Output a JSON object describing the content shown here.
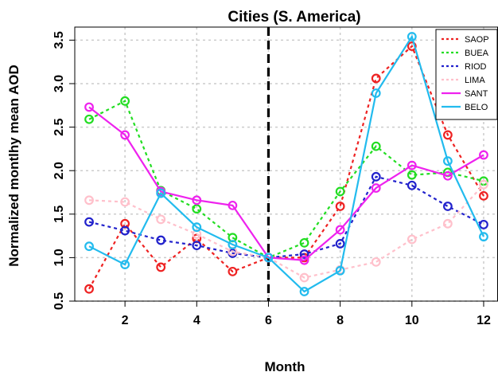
{
  "chart_data": {
    "type": "line",
    "title": "Cities (S. America)",
    "xlabel": "Month",
    "ylabel": "Normalized montlhy mean AOD",
    "xlim": [
      0.6,
      12.4
    ],
    "ylim": [
      0.5,
      3.65
    ],
    "xticks": [
      2,
      4,
      6,
      8,
      10,
      12
    ],
    "yticks": [
      0.5,
      1.0,
      1.5,
      2.0,
      2.5,
      3.0,
      3.5
    ],
    "xtick_labels": [
      "2",
      "4",
      "6",
      "8",
      "10",
      "12"
    ],
    "ytick_labels": [
      "0.5",
      "1.0",
      "1.5",
      "2.0",
      "2.5",
      "3.0",
      "3.5"
    ],
    "grid": true,
    "legend_position": "top-right",
    "reference_line": {
      "x": 6,
      "style": "dashed",
      "color": "#000000"
    },
    "x": [
      1,
      2,
      3,
      4,
      5,
      6,
      7,
      8,
      9,
      10,
      11,
      12
    ],
    "series": [
      {
        "name": "SAOP",
        "color": "#ee2222",
        "dash": "dotted",
        "values": [
          0.64,
          1.39,
          0.89,
          1.22,
          0.84,
          1.0,
          1.0,
          1.59,
          3.06,
          3.43,
          2.41,
          1.71
        ]
      },
      {
        "name": "BUEA",
        "color": "#22dd22",
        "dash": "dotted",
        "values": [
          2.59,
          2.8,
          1.77,
          1.56,
          1.23,
          1.0,
          1.17,
          1.76,
          2.28,
          1.95,
          1.98,
          1.88
        ]
      },
      {
        "name": "RIOD",
        "color": "#2222cc",
        "dash": "dotted",
        "values": [
          1.41,
          1.31,
          1.2,
          1.14,
          1.05,
          1.0,
          1.04,
          1.16,
          1.93,
          1.83,
          1.59,
          1.38
        ]
      },
      {
        "name": "LIMA",
        "color": "#ffc0cb",
        "dash": "dotted",
        "values": [
          1.66,
          1.64,
          1.44,
          1.27,
          1.07,
          1.0,
          0.77,
          0.86,
          0.95,
          1.21,
          1.39,
          1.84
        ]
      },
      {
        "name": "SANT",
        "color": "#ee22ee",
        "dash": "solid",
        "values": [
          2.73,
          2.41,
          1.76,
          1.66,
          1.6,
          1.0,
          0.97,
          1.32,
          1.8,
          2.06,
          1.94,
          2.18
        ]
      },
      {
        "name": "BELO",
        "color": "#22bbee",
        "dash": "solid",
        "values": [
          1.13,
          0.92,
          1.74,
          1.35,
          1.15,
          1.0,
          0.61,
          0.85,
          2.89,
          3.54,
          2.11,
          1.24
        ]
      }
    ]
  }
}
